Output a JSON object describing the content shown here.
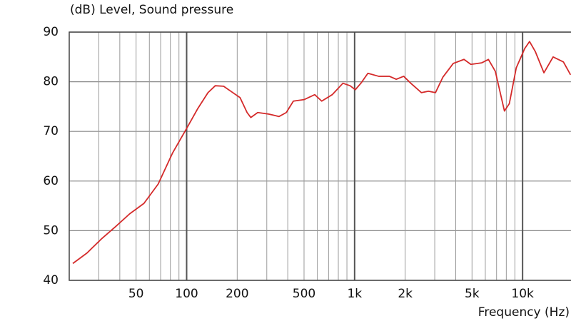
{
  "chart_data": {
    "type": "line",
    "title": "(dB)  Level, Sound pressure",
    "x_label": "Frequency  (Hz)",
    "x_scale": "log",
    "grid": true,
    "color": "#d42a2a",
    "xlim": [
      20,
      20000
    ],
    "ylim": [
      40,
      90
    ],
    "xticks": [
      50,
      100,
      200,
      500,
      {
        "value": 1000,
        "label": "1k"
      },
      {
        "value": 2000,
        "label": "2k"
      },
      {
        "value": 5000,
        "label": "5k"
      },
      {
        "value": 10000,
        "label": "10k"
      }
    ],
    "x_minor_ticks": [
      20,
      30,
      40,
      60,
      70,
      80,
      90,
      300,
      400,
      600,
      700,
      800,
      900,
      3000,
      4000,
      6000,
      7000,
      8000,
      9000
    ],
    "yticks": [
      40,
      50,
      60,
      70,
      80,
      90
    ],
    "x": [
      21,
      25.5,
      31,
      37.7,
      45.8,
      55.7,
      67.7,
      82.3,
      100,
      116,
      134,
      148,
      166,
      183,
      208,
      229,
      241,
      265,
      307,
      355,
      392,
      432,
      500,
      579,
      637,
      736,
      852,
      940,
      1010,
      1090,
      1200,
      1390,
      1610,
      1770,
      1960,
      2160,
      2500,
      2750,
      3030,
      3350,
      3870,
      4480,
      4920,
      5700,
      6260,
      6880,
      7800,
      8340,
      9170,
      10300,
      11000,
      11900,
      13400,
      15200,
      17500,
      19300
    ],
    "values": [
      43.4,
      45.5,
      48.3,
      50.8,
      53.4,
      55.5,
      59.4,
      65.6,
      70.6,
      74.5,
      77.8,
      79.2,
      79.1,
      78.1,
      76.8,
      73.8,
      72.8,
      73.8,
      73.5,
      73.0,
      73.8,
      76.1,
      76.4,
      77.4,
      76.1,
      77.4,
      79.7,
      79.2,
      78.4,
      79.7,
      81.7,
      81.1,
      81.1,
      80.5,
      81.1,
      79.7,
      77.8,
      78.1,
      77.8,
      80.9,
      83.7,
      84.5,
      83.5,
      83.8,
      84.5,
      82.1,
      74.1,
      75.6,
      82.8,
      86.7,
      88.1,
      86.1,
      81.8,
      85.0,
      84.0,
      81.4
    ]
  }
}
